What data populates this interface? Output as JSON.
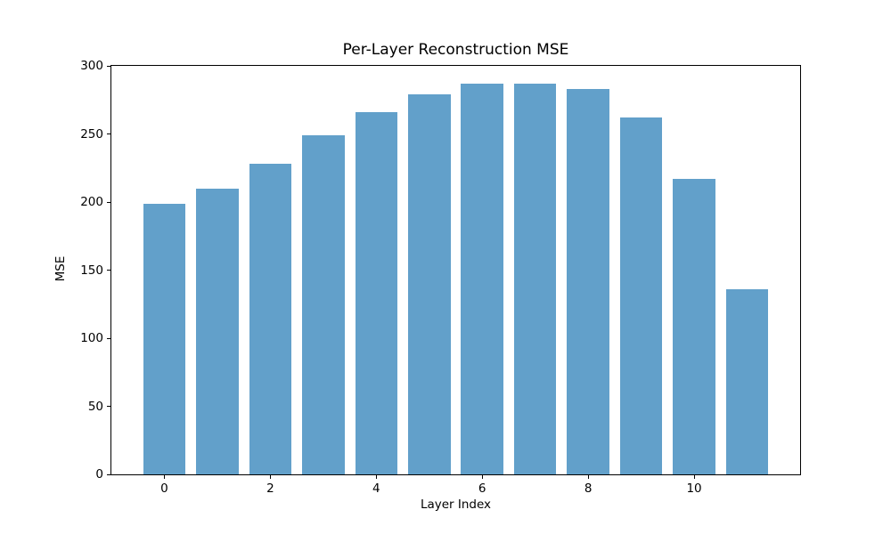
{
  "chart_data": {
    "type": "bar",
    "title": "Per-Layer Reconstruction MSE",
    "xlabel": "Layer Index",
    "ylabel": "MSE",
    "x": [
      0,
      1,
      2,
      3,
      4,
      5,
      6,
      7,
      8,
      9,
      10,
      11
    ],
    "values": [
      199,
      210,
      228,
      249,
      266,
      279,
      287,
      287,
      283,
      262,
      217,
      136
    ],
    "bar_color": "#62a0ca",
    "bar_width": 0.8,
    "xlim": [
      -1,
      12
    ],
    "ylim": [
      0,
      300
    ],
    "xticks": [
      0,
      2,
      4,
      6,
      8,
      10
    ],
    "yticks": [
      0,
      50,
      100,
      150,
      200,
      250,
      300
    ],
    "grid": false,
    "legend_position": "none"
  }
}
